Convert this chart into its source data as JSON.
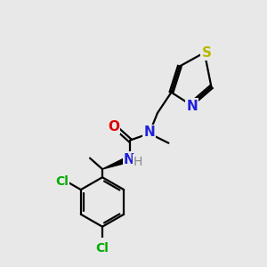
{
  "bg_color": "#e8e8e8",
  "atom_colors": {
    "C": "#000000",
    "N": "#2020dd",
    "O": "#dd0000",
    "S": "#b8b800",
    "Cl": "#00aa00",
    "H": "#888888"
  },
  "bond_color": "#000000",
  "figsize": [
    3.0,
    3.0
  ],
  "dpi": 100
}
